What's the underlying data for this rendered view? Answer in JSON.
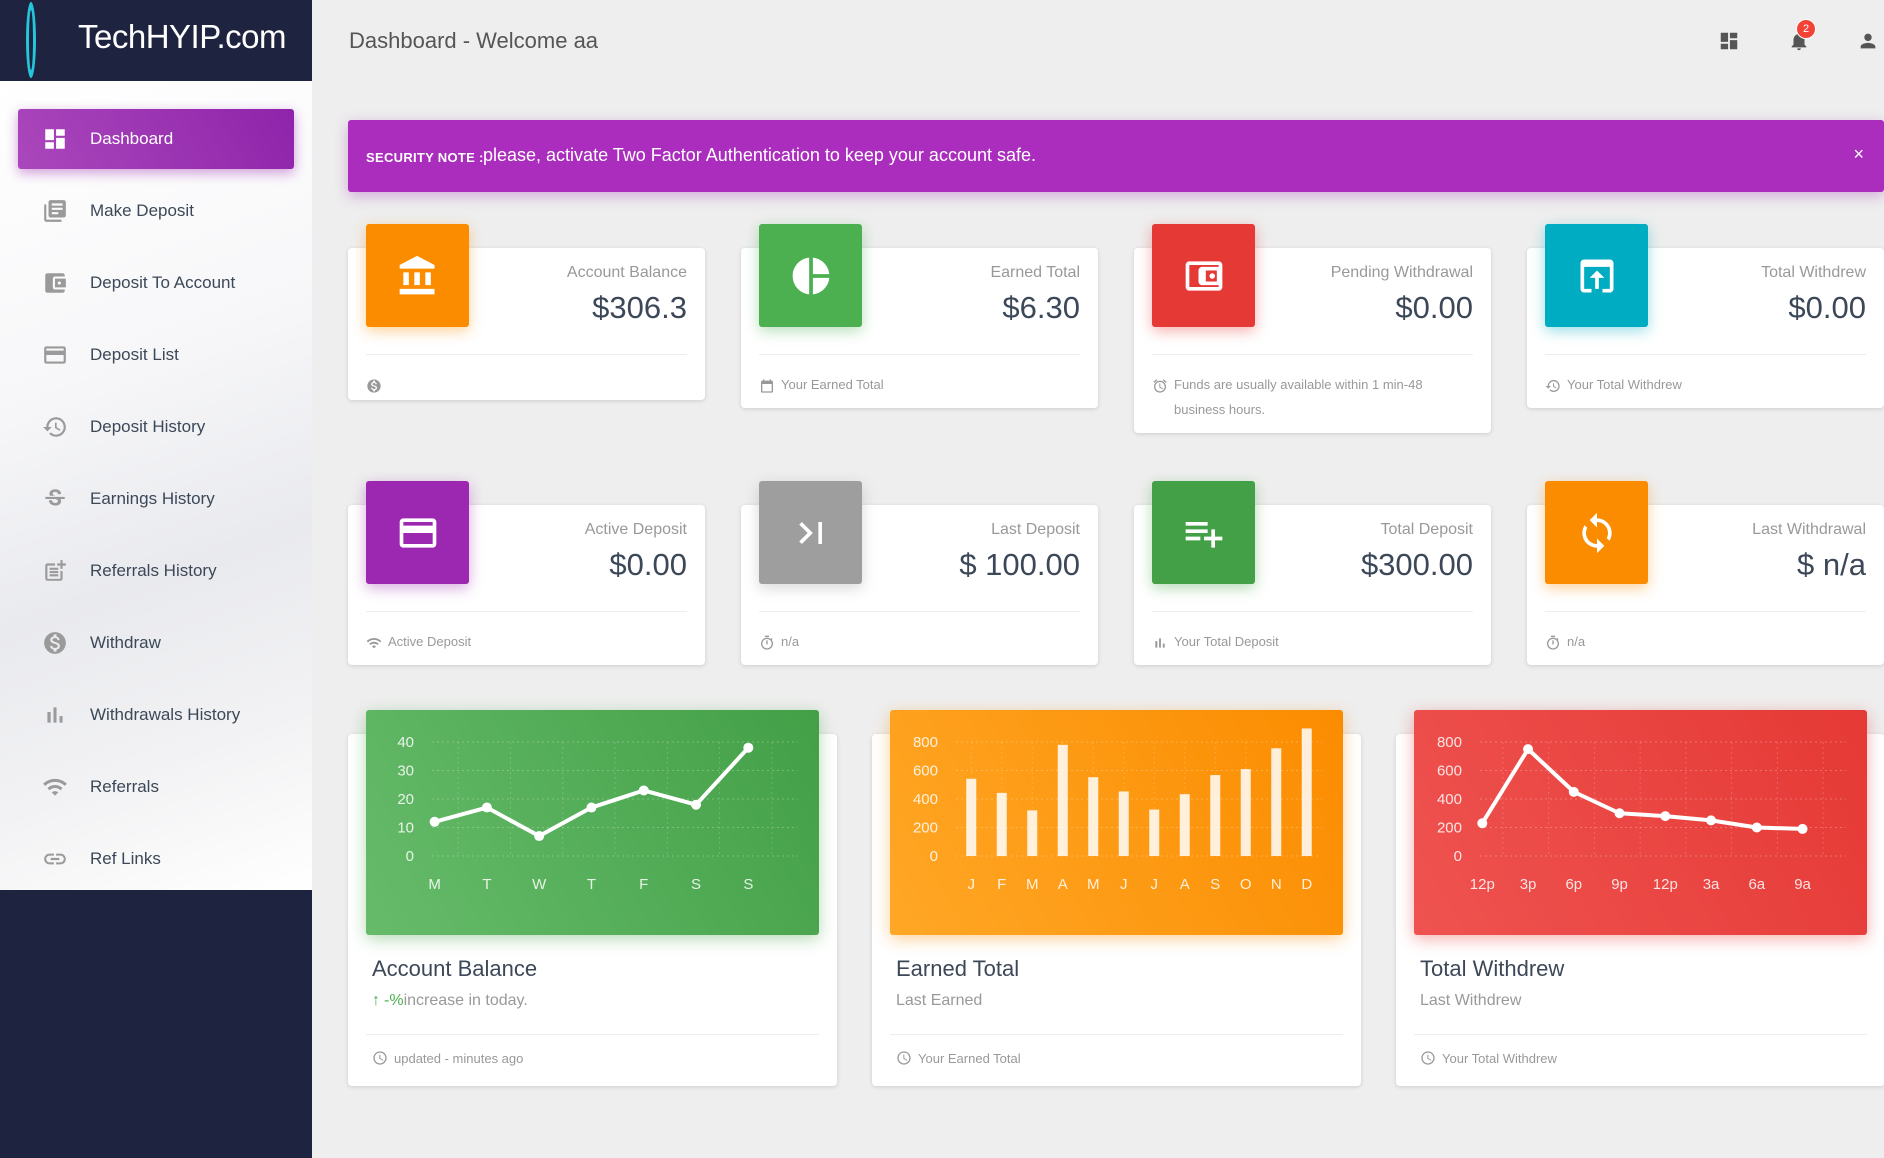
{
  "brand": {
    "name": "TechHYIP.com"
  },
  "header": {
    "title": "Dashboard - Welcome aa",
    "notification_count": "2"
  },
  "sidebar": {
    "items": [
      {
        "label": "Dashboard",
        "icon": "dashboard-icon",
        "active": true
      },
      {
        "label": "Make Deposit",
        "icon": "library-books-icon"
      },
      {
        "label": "Deposit To Account",
        "icon": "account-balance-wallet-icon"
      },
      {
        "label": "Deposit List",
        "icon": "credit-card-icon"
      },
      {
        "label": "Deposit History",
        "icon": "history-icon"
      },
      {
        "label": "Earnings History",
        "icon": "strikethrough-s-icon"
      },
      {
        "label": "Referrals History",
        "icon": "post-add-icon"
      },
      {
        "label": "Withdraw",
        "icon": "monetization-on-icon"
      },
      {
        "label": "Withdrawals History",
        "icon": "bar-chart-icon"
      },
      {
        "label": "Referrals",
        "icon": "wifi-icon"
      },
      {
        "label": "Ref Links",
        "icon": "link-icon"
      }
    ]
  },
  "alert": {
    "strong": "SECURITY NOTE :",
    "text": "please, activate Two Factor Authentication to keep your account safe.",
    "close": "×"
  },
  "stats": [
    {
      "label": "Account Balance",
      "value": "$306.3",
      "footer": "",
      "color": "#fb8c00",
      "icon": "account-balance-icon",
      "footer_icon": "dollar-circle-icon"
    },
    {
      "label": "Earned Total",
      "value": "$6.30",
      "footer": "Your Earned Total",
      "color": "#4caf50",
      "icon": "pie-chart-icon",
      "footer_icon": "calendar-icon"
    },
    {
      "label": "Pending Withdrawal",
      "value": "$0.00",
      "footer": "Funds are usually available within 1 min-48 business hours.",
      "color": "#e53935",
      "icon": "wallet-icon",
      "footer_icon": "alarm-icon"
    },
    {
      "label": "Total Withdrew",
      "value": "$0.00",
      "footer": "Your Total Withdrew",
      "color": "#00acc1",
      "icon": "upload-box-icon",
      "footer_icon": "history-icon"
    },
    {
      "label": "Active Deposit",
      "value": "$0.00",
      "footer": "Active Deposit",
      "color": "#9c27b0",
      "icon": "credit-card-icon",
      "footer_icon": "wifi-icon"
    },
    {
      "label": "Last Deposit",
      "value": "$ 100.00",
      "footer": "n/a",
      "color": "#9e9e9e",
      "icon": "last-page-icon",
      "footer_icon": "timer-icon"
    },
    {
      "label": "Total Deposit",
      "value": "$300.00",
      "footer": "Your Total Deposit",
      "color": "#43a047",
      "icon": "playlist-add-icon",
      "footer_icon": "bar-chart-icon"
    },
    {
      "label": "Last Withdrawal",
      "value": "$ n/a",
      "footer": "n/a",
      "color": "#fb8c00",
      "icon": "sync-icon",
      "footer_icon": "timer-icon"
    }
  ],
  "charts": [
    {
      "title": "Account Balance",
      "subtitle_pct": "-%",
      "subtitle": " increase in today.",
      "footer": "updated - minutes ago",
      "color_from": "#66bb6a",
      "color_to": "#43a047"
    },
    {
      "title": "Earned Total",
      "subtitle": "Last Earned",
      "footer": "Your Earned Total",
      "color_from": "#ffa726",
      "color_to": "#fb8c00"
    },
    {
      "title": "Total Withdrew",
      "subtitle": "Last Withdrew",
      "footer": "Your Total Withdrew",
      "color_from": "#ef5350",
      "color_to": "#e53935"
    }
  ],
  "chart_data": [
    {
      "type": "line",
      "categories": [
        "M",
        "T",
        "W",
        "T",
        "F",
        "S",
        "S"
      ],
      "values": [
        12,
        17,
        7,
        17,
        23,
        18,
        38
      ],
      "yticks": [
        "40",
        "30",
        "20",
        "10",
        "0"
      ],
      "ylim": [
        0,
        40
      ]
    },
    {
      "type": "bar",
      "categories": [
        "J",
        "F",
        "M",
        "A",
        "M",
        "J",
        "J",
        "A",
        "S",
        "O",
        "N",
        "D"
      ],
      "values": [
        542,
        443,
        320,
        780,
        553,
        453,
        326,
        434,
        568,
        610,
        756,
        895
      ],
      "yticks": [
        "800",
        "600",
        "400",
        "200",
        "0"
      ],
      "ylim": [
        0,
        800
      ]
    },
    {
      "type": "line",
      "categories": [
        "12p",
        "3p",
        "6p",
        "9p",
        "12p",
        "3a",
        "6a",
        "9a"
      ],
      "values": [
        230,
        750,
        450,
        300,
        280,
        250,
        200,
        190
      ],
      "yticks": [
        "800",
        "600",
        "400",
        "200",
        "0"
      ],
      "ylim": [
        0,
        800
      ]
    }
  ]
}
